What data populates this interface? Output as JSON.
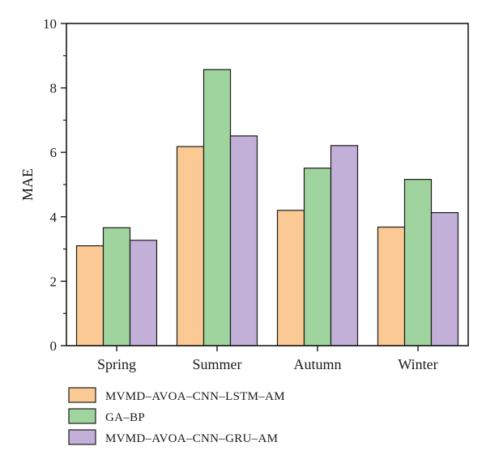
{
  "chart_data": {
    "type": "bar",
    "xlabel": "",
    "ylabel": "MAE",
    "ylim": [
      0,
      10
    ],
    "yticks": [
      "0",
      "2",
      "4",
      "6",
      "8",
      "10"
    ],
    "categories": [
      "Spring",
      "Summer",
      "Autumn",
      "Winter"
    ],
    "series": [
      {
        "name": "MVMD–AVOA–CNN–LSTM–AM",
        "color": "#fbc994",
        "values": [
          3.1,
          6.18,
          4.2,
          3.68
        ]
      },
      {
        "name": "GA–BP",
        "color": "#9fd49f",
        "values": [
          3.66,
          8.57,
          5.51,
          5.16
        ]
      },
      {
        "name": "MVMD–AVOA–CNN–GRU–AM",
        "color": "#c2b0d9",
        "values": [
          3.27,
          6.51,
          6.21,
          4.13
        ]
      }
    ],
    "grid": false,
    "legend_position": "bottom-left"
  }
}
